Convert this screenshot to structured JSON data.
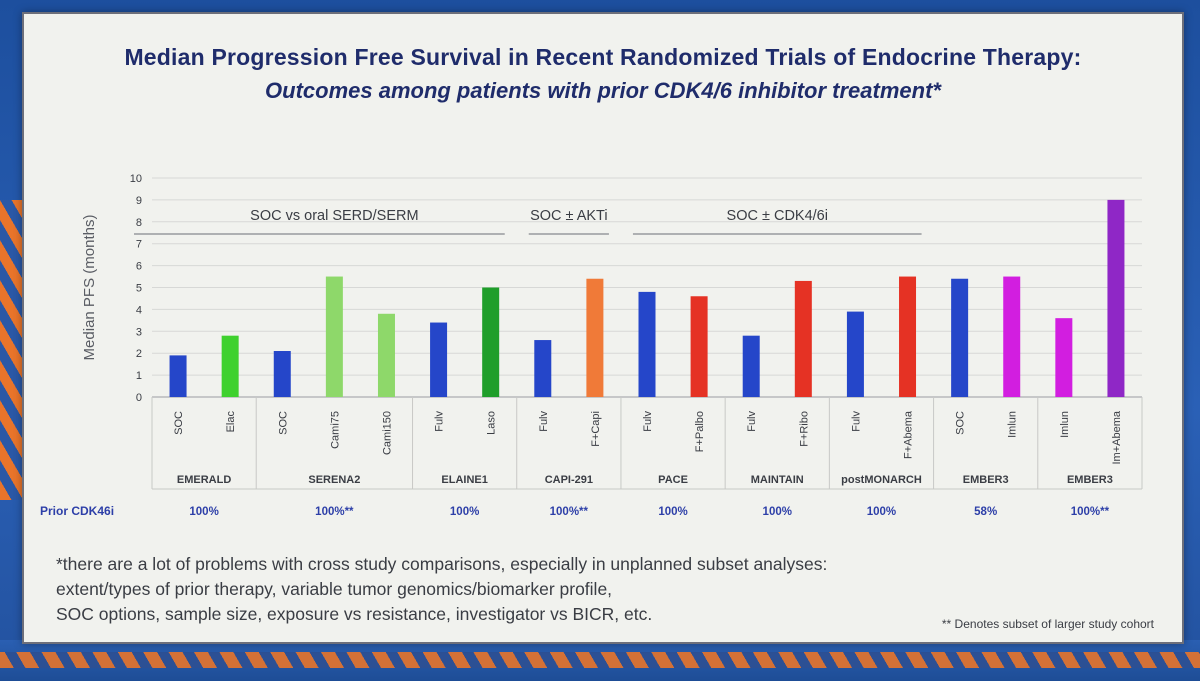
{
  "slide": {
    "title": "Median Progression Free Survival in Recent Randomized Trials of Endocrine Therapy:",
    "subtitle": "Outcomes among patients with prior CDK4/6 inhibitor treatment*",
    "footnote_lines": [
      "*there are a lot of problems with cross study comparisons, especially in unplanned subset analyses:",
      "extent/types of prior therapy, variable tumor genomics/biomarker profile,",
      "SOC options, sample size, exposure vs resistance, investigator vs BICR, etc."
    ],
    "denotes_note": "** Denotes subset of larger study cohort"
  },
  "chart_data": {
    "type": "bar",
    "ylabel": "Median PFS (months)",
    "ylim": [
      0,
      10
    ],
    "yticks": [
      0,
      1,
      2,
      3,
      4,
      5,
      6,
      7,
      8,
      9,
      10
    ],
    "grid": true,
    "bars": [
      {
        "label": "SOC",
        "value": 1.9,
        "color": "#2546c9"
      },
      {
        "label": "Elac",
        "value": 2.8,
        "color": "#3fd12e"
      },
      {
        "label": "SOC",
        "value": 2.1,
        "color": "#2546c9"
      },
      {
        "label": "Cami75",
        "value": 5.5,
        "color": "#8ed86a"
      },
      {
        "label": "Cami150",
        "value": 3.8,
        "color": "#8ed86a"
      },
      {
        "label": "Fulv",
        "value": 3.4,
        "color": "#2546c9"
      },
      {
        "label": "Laso",
        "value": 5.0,
        "color": "#1f9e2a"
      },
      {
        "label": "Fulv",
        "value": 2.6,
        "color": "#2546c9"
      },
      {
        "label": "F+Capi",
        "value": 5.4,
        "color": "#f07a38"
      },
      {
        "label": "Fulv",
        "value": 4.8,
        "color": "#2546c9"
      },
      {
        "label": "F+Palbo",
        "value": 4.6,
        "color": "#e53224"
      },
      {
        "label": "Fulv",
        "value": 2.8,
        "color": "#2546c9"
      },
      {
        "label": "F+Ribo",
        "value": 5.3,
        "color": "#e53224"
      },
      {
        "label": "Fulv",
        "value": 3.9,
        "color": "#2546c9"
      },
      {
        "label": "F+Abema",
        "value": 5.5,
        "color": "#e53224"
      },
      {
        "label": "SOC",
        "value": 5.4,
        "color": "#2546c9"
      },
      {
        "label": "Imlun",
        "value": 5.5,
        "color": "#d21ee0"
      },
      {
        "label": "Imlun",
        "value": 3.6,
        "color": "#d21ee0"
      },
      {
        "label": "Im+Abema",
        "value": 9.0,
        "color": "#8f27c6"
      }
    ],
    "groups": [
      {
        "name": "EMERALD",
        "start": 0,
        "end": 1,
        "prior": "100%"
      },
      {
        "name": "SERENA2",
        "start": 2,
        "end": 4,
        "prior": "100%**"
      },
      {
        "name": "ELAINE1",
        "start": 5,
        "end": 6,
        "prior": "100%"
      },
      {
        "name": "CAPI-291",
        "start": 7,
        "end": 8,
        "prior": "100%**"
      },
      {
        "name": "PACE",
        "start": 9,
        "end": 10,
        "prior": "100%"
      },
      {
        "name": "MAINTAIN",
        "start": 11,
        "end": 12,
        "prior": "100%"
      },
      {
        "name": "postMONARCH",
        "start": 13,
        "end": 14,
        "prior": "100%"
      },
      {
        "name": "EMBER3",
        "start": 15,
        "end": 16,
        "prior": "58%"
      },
      {
        "name": "EMBER3",
        "start": 17,
        "end": 18,
        "prior": "100%**"
      }
    ],
    "prior_row_label": "Prior CDK46i",
    "annotations": [
      {
        "text": "SOC vs oral SERD/SERM",
        "start": 0,
        "end": 6
      },
      {
        "text": "SOC ± AKTi",
        "start": 7,
        "end": 8
      },
      {
        "text": "SOC ± CDK4/6i",
        "start": 9,
        "end": 14
      }
    ],
    "colors": {
      "axis": "#3a3d44",
      "group_label": "#3a3d44",
      "prior": "#2d3fa8",
      "title": "#1f2c6b"
    }
  }
}
